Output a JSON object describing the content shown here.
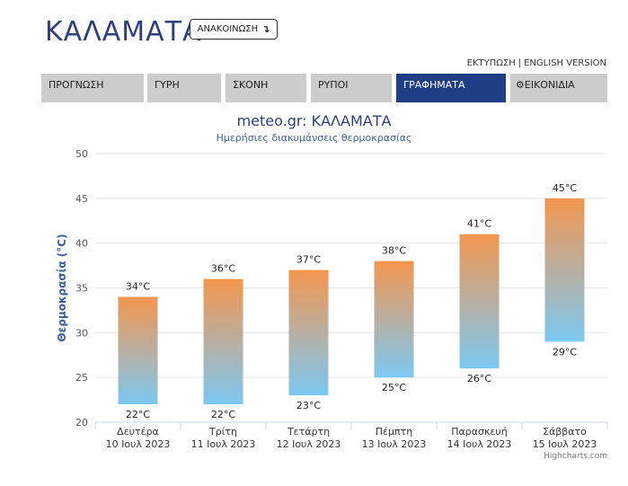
{
  "header": {
    "city": "ΚΑΛΑΜΑΤΑ",
    "announce_label": "ΑΝΑΚΟΙΝΩΣΗ",
    "announce_icon": "arrow-down-icon",
    "print_link": "ΕΚΤΥΠΩΣΗ",
    "separator": "|",
    "english_link": "ENGLISH VERSION"
  },
  "tabs": [
    {
      "label": "ΠΡΟΓΝΩΣΗ",
      "active": false
    },
    {
      "label": "ΓΥΡΗ",
      "active": false
    },
    {
      "label": "ΣΚΟΝΗ",
      "active": false
    },
    {
      "label": "ΡΥΠΟΙ",
      "active": false
    },
    {
      "label": "ΓΡΑΦΗΜΑΤΑ",
      "active": true
    },
    {
      "label": "ΕΙΚΟΝΙΔΙΑ",
      "active": false,
      "icon": "gear-icon"
    }
  ],
  "colors": {
    "accent": "#1e3f86",
    "title": "#2e3f7f",
    "bar_top": "#f4964f",
    "bar_bottom": "#7cc8f2"
  },
  "chart_data": {
    "type": "bar",
    "title": "meteo.gr: ΚΑΛΑΜΑΤΑ",
    "subtitle": "Ημερήσιες διακυμάνσεις θερμοκρασίας",
    "ylabel": "Θερμοκρασία (°C)",
    "ylim": [
      20,
      50
    ],
    "yticks": [
      20,
      25,
      30,
      35,
      40,
      45,
      50
    ],
    "grid": true,
    "categories": [
      {
        "day": "Δευτέρα",
        "date": "10 Ιουλ 2023"
      },
      {
        "day": "Τρίτη",
        "date": "11 Ιουλ 2023"
      },
      {
        "day": "Τετάρτη",
        "date": "12 Ιουλ 2023"
      },
      {
        "day": "Πέμπτη",
        "date": "13 Ιουλ 2023"
      },
      {
        "day": "Παρασκευή",
        "date": "14 Ιουλ 2023"
      },
      {
        "day": "Σάββατο",
        "date": "15 Ιουλ 2023"
      }
    ],
    "series": [
      {
        "min": 22,
        "max": 34,
        "min_label": "22°C",
        "max_label": "34°C"
      },
      {
        "min": 22,
        "max": 36,
        "min_label": "22°C",
        "max_label": "36°C"
      },
      {
        "min": 23,
        "max": 37,
        "min_label": "23°C",
        "max_label": "37°C"
      },
      {
        "min": 25,
        "max": 38,
        "min_label": "25°C",
        "max_label": "38°C"
      },
      {
        "min": 26,
        "max": 41,
        "min_label": "26°C",
        "max_label": "41°C"
      },
      {
        "min": 29,
        "max": 45,
        "min_label": "29°C",
        "max_label": "45°C"
      }
    ],
    "credits": "Highcharts.com"
  }
}
